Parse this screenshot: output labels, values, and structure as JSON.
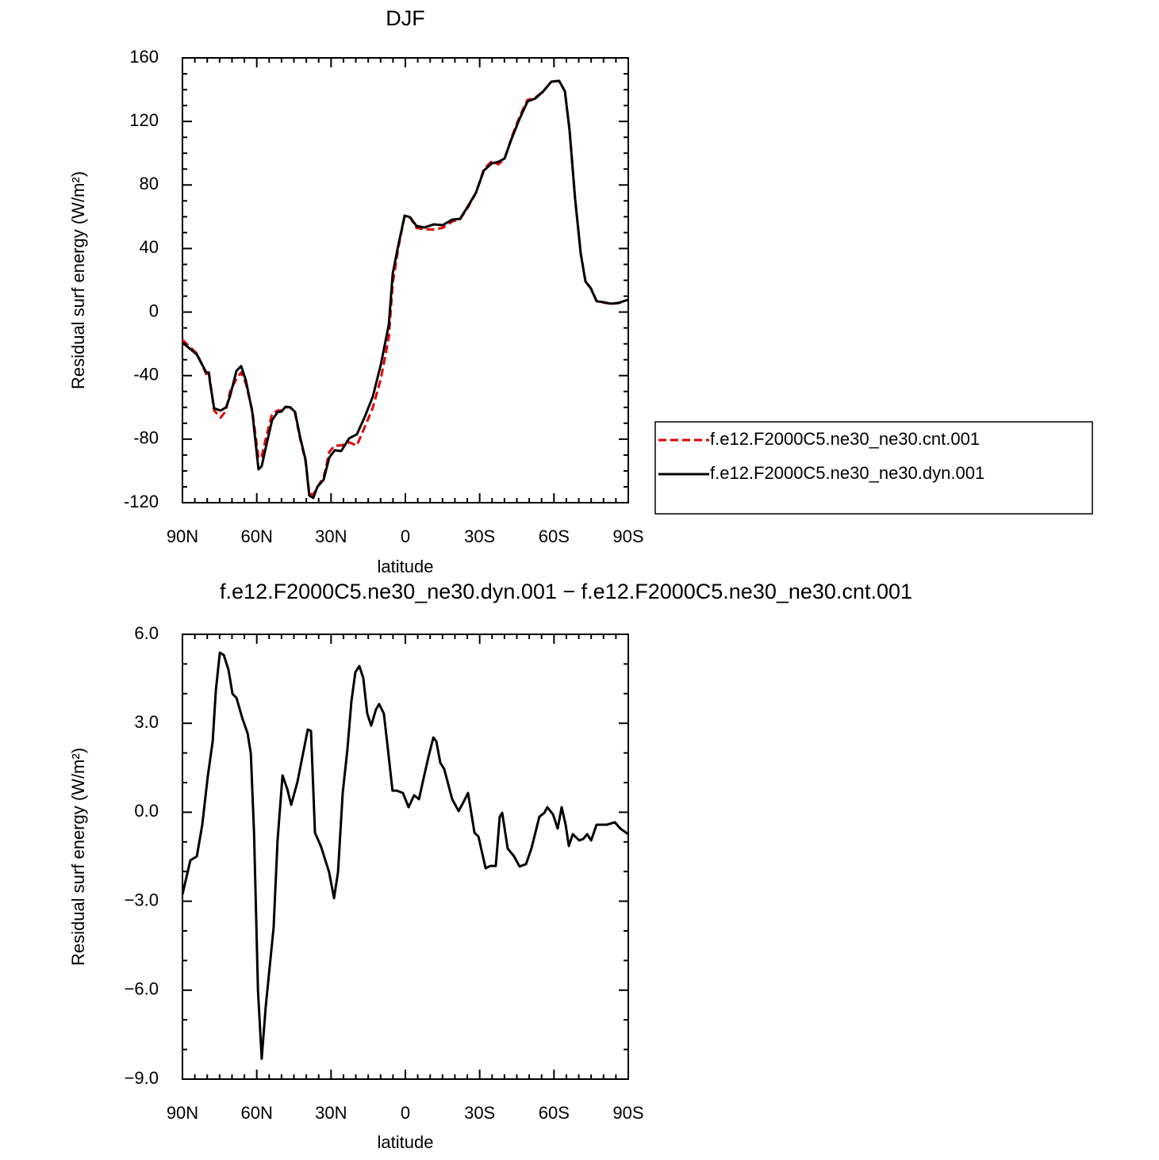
{
  "chart_data": [
    {
      "type": "line",
      "title": "DJF",
      "x_label": "latitude",
      "y_label": "Residual surf energy (W/m²)",
      "x": [
        90,
        84.2,
        80.4,
        79.4,
        78.8,
        77.2,
        74.6,
        72.4,
        70.8,
        68.2,
        66.3,
        64.4,
        61.8,
        59.3,
        58,
        56.4,
        53.8,
        51.6,
        50,
        48.4,
        46.4,
        44.5,
        42.6,
        40.3,
        38.8,
        37.2,
        35.5,
        33,
        30.7,
        28.5,
        25.9,
        22.7,
        19.6,
        16.3,
        13.1,
        9.9,
        6.7,
        5.1,
        2.9,
        0.3,
        -1.9,
        -4.5,
        -7.7,
        -11.5,
        -15.1,
        -18.9,
        -22.1,
        -25.3,
        -28.5,
        -31.7,
        -34.9,
        -37.5,
        -40,
        -42.9,
        -46.1,
        -49.3,
        -52.5,
        -55.7,
        -58.9,
        -62.1,
        -64.4,
        -66.3,
        -68.5,
        -70.8,
        -72.7,
        -74.9,
        -77.2,
        -79.7,
        -82.9,
        -86.1,
        -90
      ],
      "series": [
        {
          "name": "f.e12.F2000C5.ne30_ne30.cnt.001",
          "color": "#e00000",
          "dashed": true,
          "values": [
            -17.5,
            -26,
            -39,
            -37,
            -44,
            -62,
            -66.5,
            -62,
            -50,
            -42,
            -38,
            -45,
            -62,
            -92,
            -91,
            -80,
            -64,
            -62,
            -62,
            -60,
            -60,
            -64,
            -79,
            -94,
            -114,
            -115,
            -110,
            -104,
            -88,
            -84,
            -84,
            -82,
            -84,
            -72,
            -60,
            -42,
            -16,
            18,
            40,
            60.5,
            59.5,
            53,
            52,
            52,
            53,
            57,
            58.5,
            66,
            75,
            90,
            95,
            93,
            96,
            110,
            123,
            133.5,
            135,
            139,
            145,
            145.5,
            139,
            115,
            72,
            37,
            19.5,
            15,
            7,
            6,
            5.2,
            5.6,
            7.8
          ]
        },
        {
          "name": "f.e12.F2000C5.ne30_ne30.dyn.001",
          "color": "#000000",
          "dashed": false,
          "values": [
            -19.2,
            -26.7,
            -38,
            -38,
            -45,
            -60.6,
            -62,
            -60,
            -53,
            -37,
            -34,
            -43,
            -63,
            -99,
            -97,
            -85.6,
            -68,
            -63,
            -62.6,
            -59.6,
            -60,
            -63,
            -78,
            -93,
            -115.5,
            -117,
            -110,
            -105.5,
            -91.5,
            -87,
            -87.5,
            -79.5,
            -77,
            -65.6,
            -53,
            -33,
            -8,
            24.3,
            41.7,
            60.7,
            59.7,
            54.2,
            53.2,
            55.2,
            54.7,
            58.2,
            58.7,
            66.7,
            75.2,
            89.1,
            93.6,
            94.6,
            96.6,
            109.1,
            121.6,
            132.5,
            134.5,
            139,
            145,
            145.5,
            139,
            114.1,
            71.7,
            36.8,
            19.3,
            14.8,
            6.8,
            6.3,
            5.3,
            5.8,
            7.8
          ]
        }
      ],
      "xlim": [
        90,
        -90
      ],
      "xticks": [
        {
          "value": 90,
          "label": "90N"
        },
        {
          "value": 60,
          "label": "60N"
        },
        {
          "value": 30,
          "label": "30N"
        },
        0,
        {
          "value": -30,
          "label": "30S"
        },
        {
          "value": -60,
          "label": "60S"
        },
        {
          "value": -90,
          "label": "90S"
        }
      ],
      "ylim": [
        -120,
        160
      ],
      "yticks": [
        -120,
        -80,
        -40,
        0,
        40,
        80,
        120,
        160
      ],
      "legend": "right"
    },
    {
      "type": "line",
      "title": "f.e12.F2000C5.ne30_ne30.dyn.001 − f.e12.F2000C5.ne30_ne30.cnt.001",
      "x_label": "latitude",
      "y_label": "Residual surf energy (W/m²)",
      "x": [
        90,
        86.8,
        84.2,
        82,
        79.8,
        77.8,
        76.5,
        74.9,
        73.3,
        71.4,
        69.8,
        68.2,
        65.9,
        63.7,
        62.4,
        61.1,
        59.5,
        58,
        56.4,
        53.2,
        51.6,
        49.6,
        47.7,
        46.1,
        43.5,
        41.3,
        39.4,
        38.1,
        36.5,
        34,
        30.8,
        28.8,
        27.2,
        25.3,
        23.4,
        21.8,
        20.2,
        18.6,
        17,
        15.4,
        13.8,
        11.9,
        10.6,
        8.7,
        7.4,
        5.2,
        3.5,
        1,
        -1.3,
        -3.5,
        -5.5,
        -7.1,
        -9.3,
        -11.3,
        -12.5,
        -14.1,
        -15.7,
        -18.9,
        -21.5,
        -23.7,
        -25.3,
        -27.9,
        -29.5,
        -32.4,
        -34.3,
        -36.5,
        -38.1,
        -39.1,
        -41.3,
        -43.9,
        -46.1,
        -48.7,
        -50.9,
        -54.1,
        -56.1,
        -57.3,
        -59.6,
        -61.5,
        -63.1,
        -64.7,
        -66,
        -67.6,
        -70.2,
        -71.8,
        -73.4,
        -75,
        -77.2,
        -81.4,
        -84.6,
        -86.8,
        -90
      ],
      "values": [
        -2.77,
        -1.62,
        -1.49,
        -0.42,
        1.19,
        2.39,
        4.13,
        5.38,
        5.3,
        4.8,
        3.99,
        3.86,
        3.19,
        2.66,
        1.99,
        -0.69,
        -6.03,
        -8.31,
        -6.57,
        -3.89,
        -0.95,
        1.24,
        0.79,
        0.25,
        1.05,
        1.99,
        2.79,
        2.74,
        -0.69,
        -1.17,
        -2.02,
        -2.9,
        -2.02,
        0.65,
        2.12,
        3.73,
        4.72,
        4.93,
        4.53,
        3.33,
        2.92,
        3.46,
        3.65,
        3.33,
        2.39,
        0.73,
        0.73,
        0.65,
        0.17,
        0.57,
        0.44,
        1.05,
        1.86,
        2.52,
        2.39,
        1.67,
        1.45,
        0.44,
        0.04,
        0.38,
        0.65,
        -0.69,
        -0.82,
        -1.89,
        -1.81,
        -1.81,
        -0.15,
        -0.02,
        -1.22,
        -1.49,
        -1.83,
        -1.75,
        -1.22,
        -0.15,
        -0.02,
        0.17,
        -0.07,
        -0.55,
        0.17,
        -0.42,
        -1.14,
        -0.74,
        -0.95,
        -0.9,
        -0.74,
        -0.95,
        -0.42,
        -0.42,
        -0.34,
        -0.55,
        -0.74
      ],
      "color": "#000000",
      "xlim": [
        90,
        -90
      ],
      "xticks": [
        {
          "value": 90,
          "label": "90N"
        },
        {
          "value": 60,
          "label": "60N"
        },
        {
          "value": 30,
          "label": "30N"
        },
        0,
        {
          "value": -30,
          "label": "30S"
        },
        {
          "value": -60,
          "label": "60S"
        },
        {
          "value": -90,
          "label": "90S"
        }
      ],
      "ylim": [
        -9,
        6
      ],
      "yticks": [
        {
          "value": -9,
          "label": "−9.0"
        },
        {
          "value": -6,
          "label": "−6.0"
        },
        {
          "value": -3,
          "label": "−3.0"
        },
        {
          "value": 0,
          "label": "0.0"
        },
        {
          "value": 3,
          "label": "3.0"
        },
        {
          "value": 6,
          "label": "6.0"
        }
      ]
    }
  ]
}
